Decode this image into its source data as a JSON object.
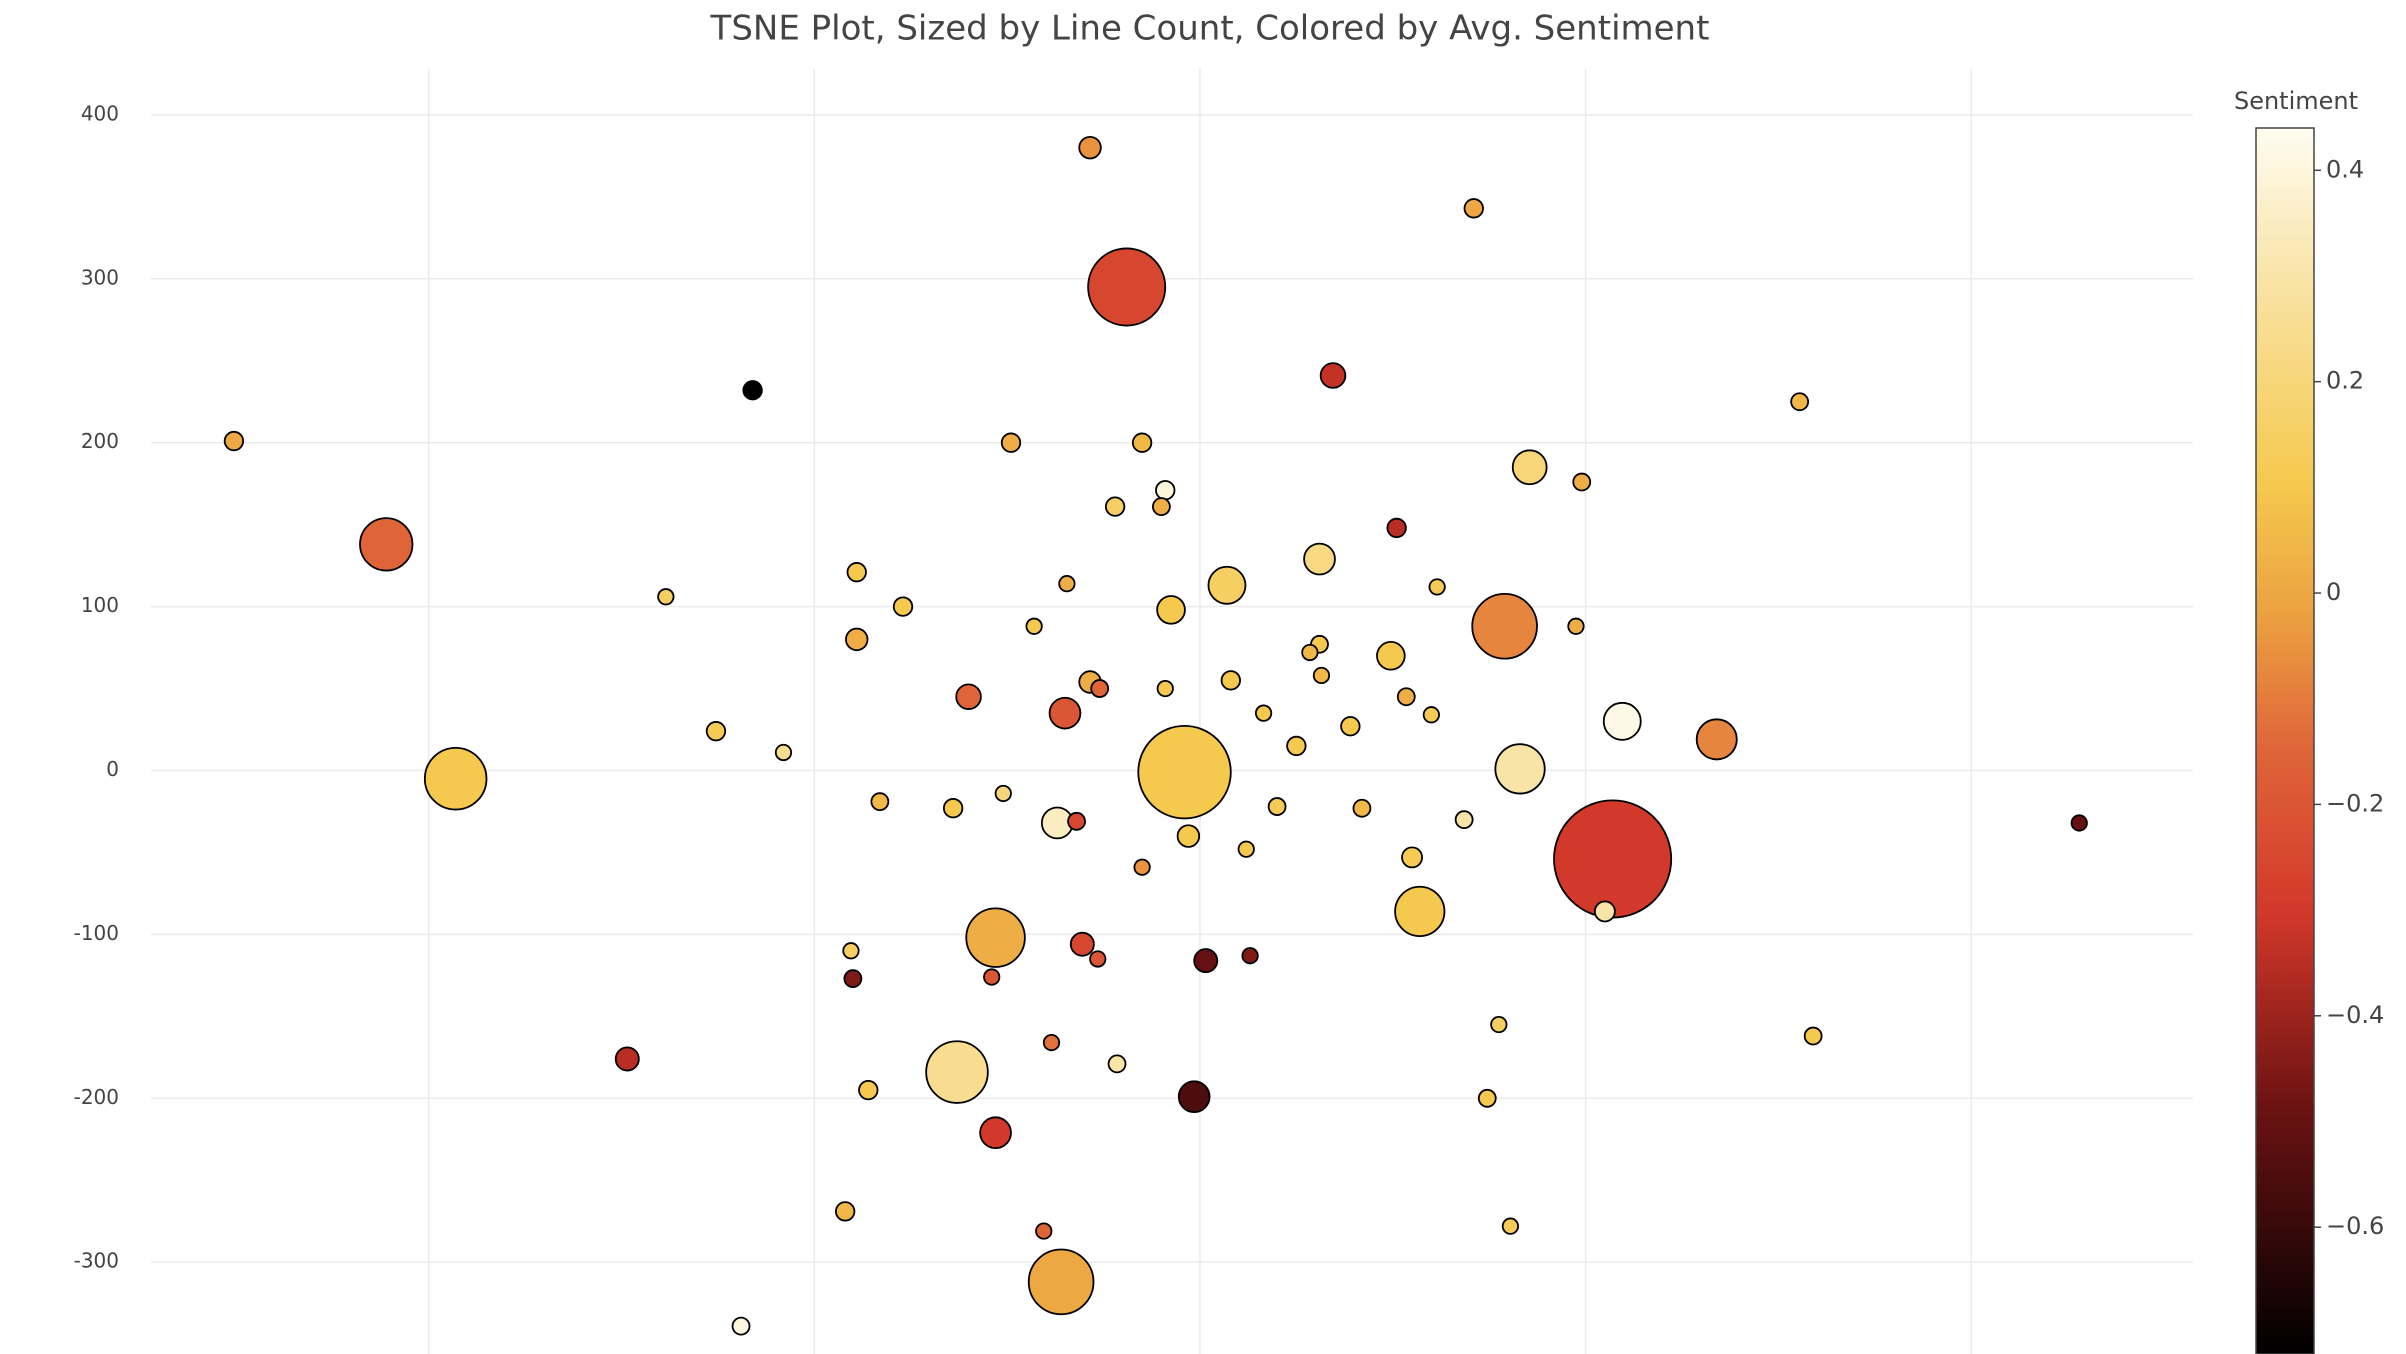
{
  "chart_data": {
    "type": "scatter",
    "title": "TSNE Plot, Sized by Line Count, Colored by Avg. Sentiment",
    "x": [
      -57,
      142,
      -38,
      69,
      -232,
      -501,
      -98,
      -30,
      311,
      171,
      198,
      -18,
      -44,
      -20,
      -422,
      102,
      62,
      -178,
      14,
      -69,
      123,
      -277,
      158,
      -15,
      -154,
      -86,
      195,
      -178,
      62,
      57,
      99,
      63,
      -57,
      -52,
      -18,
      16,
      -120,
      107,
      -70,
      33,
      120,
      219,
      268,
      -251,
      78,
      -216,
      50,
      -21,
      -8,
      166,
      -386,
      -166,
      -128,
      -102,
      -74,
      -64,
      40,
      84,
      137,
      214,
      -6,
      24,
      110,
      -30,
      456,
      114,
      210,
      -106,
      -61,
      -53,
      -181,
      3,
      26,
      -180,
      -108,
      155,
      318,
      -297,
      -77,
      -126,
      -43,
      -172,
      149,
      -3,
      -106,
      -184,
      -81,
      161,
      -72,
      -238
    ],
    "y": [
      380,
      343,
      295,
      241,
      232,
      201,
      200,
      200,
      225,
      185,
      176,
      171,
      161,
      161,
      138,
      148,
      129,
      121,
      113,
      114,
      112,
      106,
      88,
      98,
      100,
      88,
      88,
      80,
      77,
      72,
      70,
      58,
      54,
      50,
      50,
      55,
      45,
      45,
      35,
      35,
      34,
      30,
      19,
      24,
      27,
      11,
      15,
      11,
      -1,
      1,
      -5,
      -19,
      -23,
      -14,
      -32,
      -31,
      -22,
      -23,
      -30,
      -54,
      -40,
      -48,
      -53,
      -59,
      -32,
      -86,
      -86,
      -102,
      -106,
      -115,
      -110,
      -116,
      -113,
      -127,
      -126,
      -155,
      -162,
      -176,
      -166,
      -184,
      -179,
      -195,
      -200,
      -199,
      -221,
      -269,
      -281,
      -278,
      -312,
      -339
    ],
    "sizes": [
      14,
      12,
      50,
      16,
      12,
      12,
      12,
      12,
      11,
      22,
      11,
      12,
      12,
      11,
      34,
      12,
      20,
      12,
      24,
      10,
      10,
      10,
      42,
      18,
      12,
      10,
      10,
      14,
      11,
      10,
      18,
      10,
      14,
      11,
      10,
      12,
      16,
      11,
      20,
      10,
      10,
      24,
      26,
      12,
      12,
      10,
      12,
      10,
      60,
      32,
      40,
      11,
      12,
      10,
      20,
      11,
      11,
      11,
      11,
      76,
      14,
      10,
      13,
      10,
      10,
      32,
      13,
      38,
      15,
      10,
      10,
      15,
      10,
      11,
      10,
      10,
      11,
      15,
      10,
      40,
      11,
      12,
      11,
      20,
      20,
      12,
      10,
      10,
      42,
      11
    ],
    "sentiment": [
      -0.05,
      0.0,
      -0.25,
      -0.33,
      -0.72,
      0.0,
      0.02,
      0.05,
      0.05,
      0.2,
      0.02,
      0.4,
      0.15,
      0.02,
      -0.15,
      -0.35,
      0.22,
      0.1,
      0.15,
      0.02,
      0.12,
      0.15,
      -0.08,
      0.1,
      0.1,
      0.1,
      0.02,
      0.02,
      0.1,
      0.05,
      0.1,
      0.05,
      0.02,
      -0.15,
      0.1,
      0.1,
      -0.15,
      0.02,
      -0.2,
      0.1,
      0.12,
      0.42,
      -0.08,
      0.12,
      0.1,
      0.25,
      0.1,
      0.12,
      0.1,
      0.3,
      0.1,
      0.05,
      0.1,
      0.2,
      0.35,
      -0.25,
      0.12,
      0.05,
      0.3,
      -0.3,
      0.1,
      0.1,
      0.12,
      -0.05,
      -0.5,
      0.1,
      0.3,
      0.02,
      -0.25,
      -0.2,
      0.15,
      -0.5,
      -0.45,
      -0.45,
      -0.2,
      0.15,
      0.1,
      -0.35,
      -0.12,
      0.25,
      0.3,
      0.1,
      0.1,
      -0.55,
      -0.3,
      0.05,
      -0.15,
      0.12,
      0.0,
      0.4
    ],
    "xlim": [
      -544,
      515
    ],
    "ylim": [
      -356,
      428
    ],
    "xticks": [
      -400,
      -200,
      0,
      200,
      400
    ],
    "show_x_tick_labels": false,
    "yticks": [
      -300,
      -200,
      -100,
      0,
      100,
      200,
      300,
      400
    ],
    "grid": true,
    "marker_line_color": "#000000",
    "colorbar": {
      "title": "Sentiment",
      "lim": [
        -0.72,
        0.44
      ],
      "ticks": [
        {
          "value": -0.6,
          "label": "−0.6"
        },
        {
          "value": -0.4,
          "label": "−0.4"
        },
        {
          "value": -0.2,
          "label": "−0.2"
        },
        0,
        0.2,
        0.4
      ],
      "colorscale": [
        [
          0,
          "#000000"
        ],
        [
          0.2,
          "#6b1212"
        ],
        [
          0.36,
          "#d3382a"
        ],
        [
          0.5,
          "#e0683a"
        ],
        [
          0.6,
          "#eba040"
        ],
        [
          0.71,
          "#f5c94e"
        ],
        [
          0.88,
          "#f9e4a8"
        ],
        [
          1,
          "#fffdf2"
        ]
      ]
    }
  }
}
